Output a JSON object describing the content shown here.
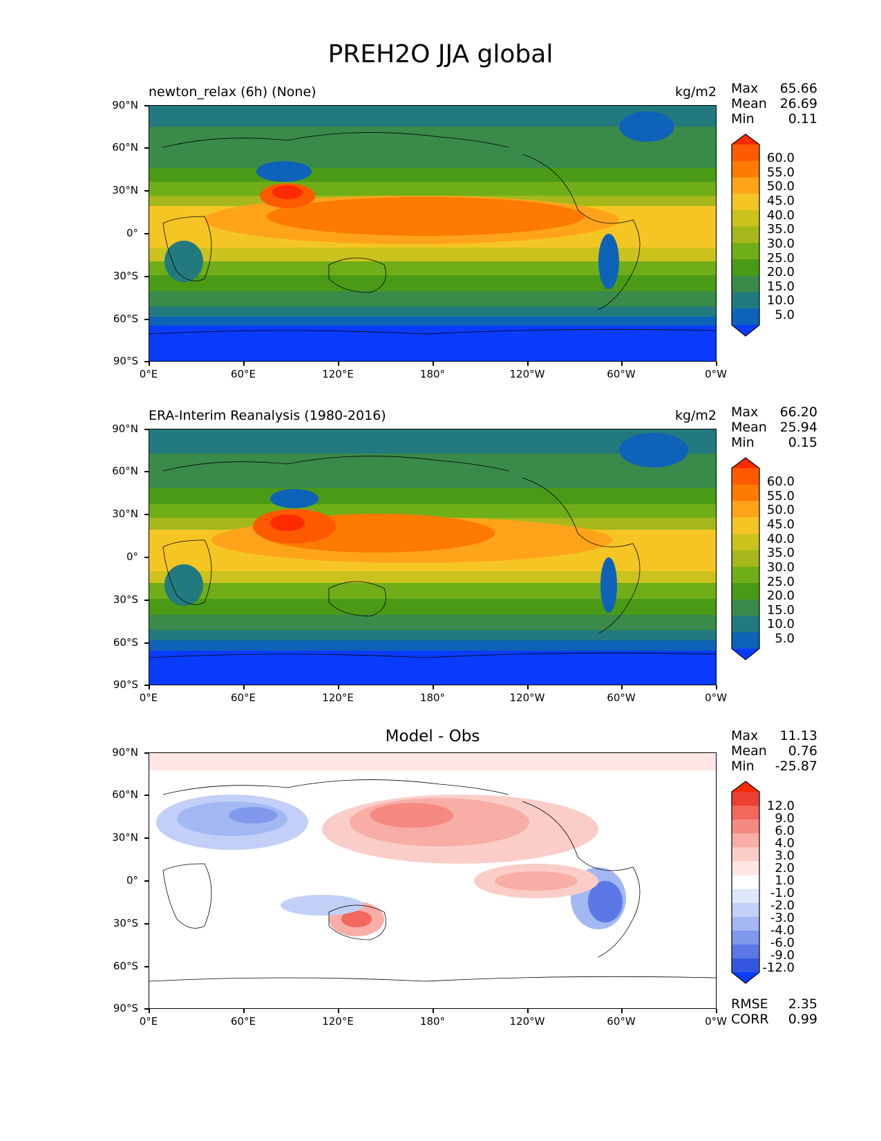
{
  "figure": {
    "title": "PREH2O JJA global"
  },
  "panels": [
    {
      "left_title": "newton_relax (6h) (None)",
      "right_title": "kg/m2",
      "stats": [
        {
          "label": "Max",
          "value": "65.66"
        },
        {
          "label": "Mean",
          "value": "26.69"
        },
        {
          "label": "Min",
          "value": "0.11"
        }
      ]
    },
    {
      "left_title": "ERA-Interim Reanalysis (1980-2016)",
      "right_title": "kg/m2",
      "stats": [
        {
          "label": "Max",
          "value": "66.20"
        },
        {
          "label": "Mean",
          "value": "25.94"
        },
        {
          "label": "Min",
          "value": "0.15"
        }
      ]
    },
    {
      "center_title": "Model - Obs",
      "stats": [
        {
          "label": "Max",
          "value": "11.13"
        },
        {
          "label": "Mean",
          "value": "0.76"
        },
        {
          "label": "Min",
          "value": "-25.87"
        }
      ],
      "bottom_stats": [
        {
          "label": "RMSE",
          "value": "2.35"
        },
        {
          "label": "CORR",
          "value": "0.99"
        }
      ]
    }
  ],
  "axes": {
    "y_ticks": [
      "90°N",
      "60°N",
      "30°N",
      "0°",
      "30°S",
      "60°S",
      "90°S"
    ],
    "x_ticks": [
      "0°E",
      "60°E",
      "120°E",
      "180°",
      "120°W",
      "60°W",
      "0°W"
    ]
  },
  "colorbars": {
    "field_labels": [
      "60.0",
      "55.0",
      "50.0",
      "45.0",
      "40.0",
      "35.0",
      "30.0",
      "25.0",
      "20.0",
      "15.0",
      "10.0",
      "5.0"
    ],
    "field_colors": [
      "#ff2a00",
      "#ff5a00",
      "#ff7a00",
      "#ffa41a",
      "#f5c524",
      "#ccc21e",
      "#a6b81c",
      "#6fae18",
      "#4a9a16",
      "#3a8a4a",
      "#237a7e",
      "#0e62b8",
      "#0a3cff"
    ],
    "diff_labels": [
      "12.0",
      "9.0",
      "6.0",
      "4.0",
      "3.0",
      "2.0",
      "1.0",
      "-1.0",
      "-2.0",
      "-3.0",
      "-4.0",
      "-6.0",
      "-9.0",
      "-12.0"
    ],
    "diff_colors": [
      "#ff2a00",
      "#ee3f33",
      "#f3675d",
      "#f58a82",
      "#f8ada7",
      "#fbcdc8",
      "#fde6e3",
      "#ffffff",
      "#dde6fb",
      "#c2d0f7",
      "#a3b7f2",
      "#8199ec",
      "#5b78e6",
      "#3557e0",
      "#0a3cff"
    ]
  },
  "chart_data": [
    {
      "type": "heatmap",
      "title": "newton_relax (6h) (None)",
      "units": "kg/m2",
      "projection": "PlateCarree",
      "lon_range": [
        0,
        360
      ],
      "lat_range": [
        -90,
        90
      ],
      "contour_levels": [
        5,
        10,
        15,
        20,
        25,
        30,
        35,
        40,
        45,
        50,
        55,
        60
      ],
      "stats": {
        "max": 65.66,
        "mean": 26.69,
        "min": 0.11
      }
    },
    {
      "type": "heatmap",
      "title": "ERA-Interim Reanalysis (1980-2016)",
      "units": "kg/m2",
      "projection": "PlateCarree",
      "lon_range": [
        0,
        360
      ],
      "lat_range": [
        -90,
        90
      ],
      "contour_levels": [
        5,
        10,
        15,
        20,
        25,
        30,
        35,
        40,
        45,
        50,
        55,
        60
      ],
      "stats": {
        "max": 66.2,
        "mean": 25.94,
        "min": 0.15
      }
    },
    {
      "type": "heatmap",
      "title": "Model - Obs",
      "projection": "PlateCarree",
      "lon_range": [
        0,
        360
      ],
      "lat_range": [
        -90,
        90
      ],
      "contour_levels": [
        -12,
        -9,
        -6,
        -4,
        -3,
        -2,
        -1,
        1,
        2,
        3,
        4,
        6,
        9,
        12
      ],
      "stats": {
        "max": 11.13,
        "mean": 0.76,
        "min": -25.87,
        "rmse": 2.35,
        "corr": 0.99
      }
    }
  ]
}
